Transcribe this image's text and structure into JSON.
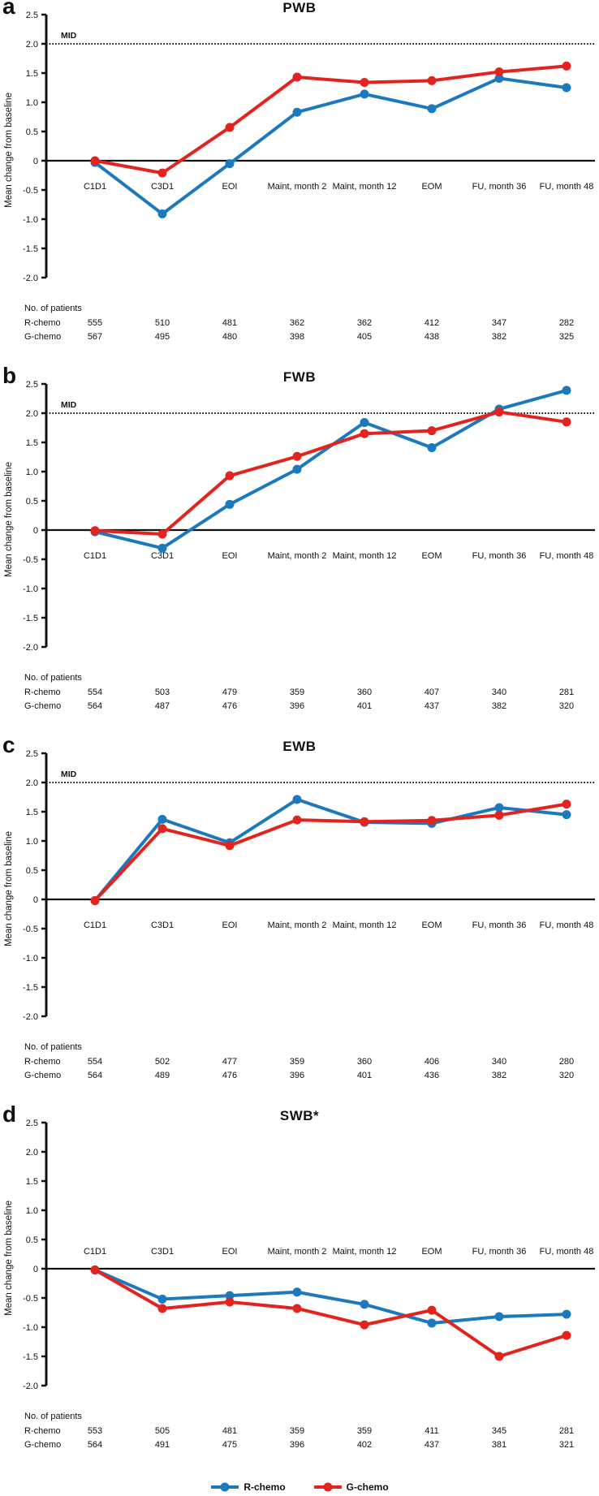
{
  "figure": {
    "ylabel": "Mean change from baseline",
    "mid_label": "MID",
    "patients_header": "No. of patients",
    "colors": {
      "r_chemo": "#1c79bd",
      "g_chemo": "#e2231e",
      "axis": "#111111"
    },
    "legend": [
      {
        "label": "R-chemo",
        "color": "#1c79bd"
      },
      {
        "label": "G-chemo",
        "color": "#e2231e"
      }
    ]
  },
  "chart_data": [
    {
      "type": "line",
      "panel_label": "a",
      "title": "PWB",
      "ylabel": "Mean change from baseline",
      "ylim": [
        -2.0,
        2.5
      ],
      "yticks": [
        2.5,
        2.0,
        1.5,
        1.0,
        0.5,
        0,
        -0.5,
        -1.0,
        -1.5,
        -2.0
      ],
      "mid_line": 2.0,
      "grid": false,
      "x_labels_position": "below_zero",
      "categories": [
        "C1D1",
        "C3D1",
        "EOI",
        "Maint, month 2",
        "Maint, month 12",
        "EOM",
        "FU, month 36",
        "FU, month 48"
      ],
      "series": [
        {
          "name": "R-chemo",
          "color": "#1c79bd",
          "values": [
            -0.03,
            -0.91,
            -0.05,
            0.83,
            1.14,
            0.89,
            1.41,
            1.25
          ]
        },
        {
          "name": "G-chemo",
          "color": "#e2231e",
          "values": [
            0.0,
            -0.21,
            0.57,
            1.43,
            1.34,
            1.37,
            1.52,
            1.62
          ]
        }
      ],
      "patients": {
        "header": "No. of patients",
        "rows": [
          {
            "label": "R-chemo",
            "values": [
              555,
              510,
              481,
              362,
              362,
              412,
              347,
              282
            ]
          },
          {
            "label": "G-chemo",
            "values": [
              567,
              495,
              480,
              398,
              405,
              438,
              382,
              325
            ]
          }
        ]
      }
    },
    {
      "type": "line",
      "panel_label": "b",
      "title": "FWB",
      "ylabel": "Mean change from baseline",
      "ylim": [
        -2.0,
        2.5
      ],
      "yticks": [
        2.5,
        2.0,
        1.5,
        1.0,
        0.5,
        0,
        -0.5,
        -1.0,
        -1.5,
        -2.0
      ],
      "mid_line": 2.0,
      "grid": false,
      "x_labels_position": "below_zero",
      "categories": [
        "C1D1",
        "C3D1",
        "EOI",
        "Maint, month 2",
        "Maint, month 12",
        "EOM",
        "FU, month 36",
        "FU, month 48"
      ],
      "series": [
        {
          "name": "R-chemo",
          "color": "#1c79bd",
          "values": [
            -0.03,
            -0.31,
            0.44,
            1.04,
            1.84,
            1.41,
            2.07,
            2.39
          ]
        },
        {
          "name": "G-chemo",
          "color": "#e2231e",
          "values": [
            -0.01,
            -0.07,
            0.93,
            1.26,
            1.65,
            1.7,
            2.02,
            1.85
          ]
        }
      ],
      "patients": {
        "header": "No. of patients",
        "rows": [
          {
            "label": "R-chemo",
            "values": [
              554,
              503,
              479,
              359,
              360,
              407,
              340,
              281
            ]
          },
          {
            "label": "G-chemo",
            "values": [
              564,
              487,
              476,
              396,
              401,
              437,
              382,
              320
            ]
          }
        ]
      }
    },
    {
      "type": "line",
      "panel_label": "c",
      "title": "EWB",
      "ylabel": "Mean change from baseline",
      "ylim": [
        -2.0,
        2.5
      ],
      "yticks": [
        2.5,
        2.0,
        1.5,
        1.0,
        0.5,
        0,
        -0.5,
        -1.0,
        -1.5,
        -2.0
      ],
      "mid_line": 2.0,
      "grid": false,
      "x_labels_position": "below_zero",
      "categories": [
        "C1D1",
        "C3D1",
        "EOI",
        "Maint, month 2",
        "Maint, month 12",
        "EOM",
        "FU, month 36",
        "FU, month 48"
      ],
      "series": [
        {
          "name": "R-chemo",
          "color": "#1c79bd",
          "values": [
            -0.02,
            1.37,
            0.97,
            1.71,
            1.32,
            1.3,
            1.57,
            1.45
          ]
        },
        {
          "name": "G-chemo",
          "color": "#e2231e",
          "values": [
            -0.02,
            1.21,
            0.92,
            1.36,
            1.33,
            1.35,
            1.44,
            1.63
          ]
        }
      ],
      "patients": {
        "header": "No. of patients",
        "rows": [
          {
            "label": "R-chemo",
            "values": [
              554,
              502,
              477,
              359,
              360,
              406,
              340,
              280
            ]
          },
          {
            "label": "G-chemo",
            "values": [
              564,
              489,
              476,
              396,
              401,
              436,
              382,
              320
            ]
          }
        ]
      }
    },
    {
      "type": "line",
      "panel_label": "d",
      "title": "SWB*",
      "ylabel": "Mean change from baseline",
      "ylim": [
        -2.0,
        2.5
      ],
      "yticks": [
        2.5,
        2.0,
        1.5,
        1.0,
        0.5,
        0,
        -0.5,
        -1.0,
        -1.5,
        -2.0
      ],
      "mid_line": null,
      "grid": false,
      "x_labels_position": "above_zero",
      "categories": [
        "C1D1",
        "C3D1",
        "EOI",
        "Maint, month 2",
        "Maint, month 12",
        "EOM",
        "FU, month 36",
        "FU, month 48"
      ],
      "series": [
        {
          "name": "R-chemo",
          "color": "#1c79bd",
          "values": [
            -0.02,
            -0.52,
            -0.46,
            -0.4,
            -0.61,
            -0.93,
            -0.82,
            -0.78
          ]
        },
        {
          "name": "G-chemo",
          "color": "#e2231e",
          "values": [
            -0.02,
            -0.68,
            -0.57,
            -0.68,
            -0.96,
            -0.71,
            -1.5,
            -1.14
          ]
        }
      ],
      "patients": {
        "header": "No. of patients",
        "rows": [
          {
            "label": "R-chemo",
            "values": [
              553,
              505,
              481,
              359,
              359,
              411,
              345,
              281
            ]
          },
          {
            "label": "G-chemo",
            "values": [
              564,
              491,
              475,
              396,
              402,
              437,
              381,
              321
            ]
          }
        ]
      }
    }
  ]
}
